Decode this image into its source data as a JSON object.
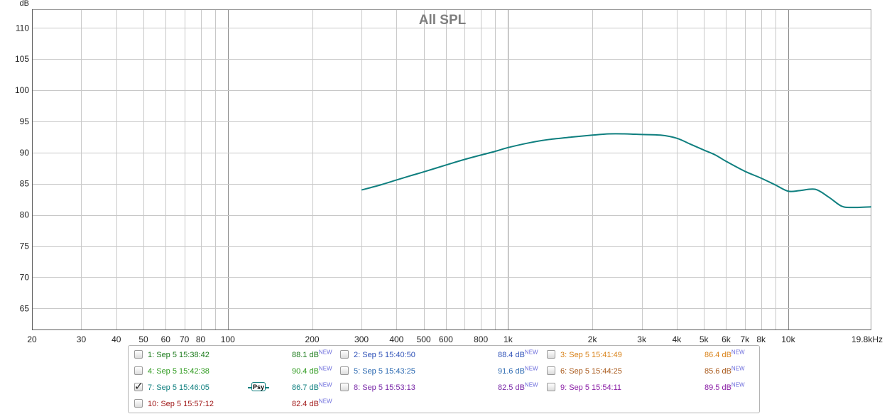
{
  "chart_data": {
    "type": "line",
    "title": "All SPL",
    "ylabel": "dB",
    "xlabel": "",
    "x_scale": "log",
    "xlim": [
      20,
      19800
    ],
    "ylim": [
      61.5,
      113
    ],
    "x_ticks": [
      {
        "value": 20,
        "label": "20"
      },
      {
        "value": 30,
        "label": "30"
      },
      {
        "value": 40,
        "label": "40"
      },
      {
        "value": 50,
        "label": "50"
      },
      {
        "value": 60,
        "label": "60"
      },
      {
        "value": 70,
        "label": "70"
      },
      {
        "value": 80,
        "label": "80"
      },
      {
        "value": 100,
        "label": "100"
      },
      {
        "value": 200,
        "label": "200"
      },
      {
        "value": 300,
        "label": "300"
      },
      {
        "value": 400,
        "label": "400"
      },
      {
        "value": 500,
        "label": "500"
      },
      {
        "value": 600,
        "label": "600"
      },
      {
        "value": 800,
        "label": "800"
      },
      {
        "value": 1000,
        "label": "1k"
      },
      {
        "value": 2000,
        "label": "2k"
      },
      {
        "value": 3000,
        "label": "3k"
      },
      {
        "value": 4000,
        "label": "4k"
      },
      {
        "value": 5000,
        "label": "5k"
      },
      {
        "value": 6000,
        "label": "6k"
      },
      {
        "value": 7000,
        "label": "7k"
      },
      {
        "value": 8000,
        "label": "8k"
      },
      {
        "value": 10000,
        "label": "10k"
      },
      {
        "value": 19800,
        "label": "19.8kHz"
      }
    ],
    "y_ticks": [
      65,
      70,
      75,
      80,
      85,
      90,
      95,
      100,
      105,
      110
    ],
    "grid": true,
    "series": [
      {
        "name": "7: Sep 5 15:46:05",
        "color": "#0f7f7f",
        "points": [
          [
            300,
            84.0
          ],
          [
            350,
            84.8
          ],
          [
            400,
            85.6
          ],
          [
            450,
            86.3
          ],
          [
            500,
            86.9
          ],
          [
            600,
            88.0
          ],
          [
            700,
            88.9
          ],
          [
            800,
            89.6
          ],
          [
            900,
            90.2
          ],
          [
            1000,
            90.8
          ],
          [
            1200,
            91.6
          ],
          [
            1400,
            92.1
          ],
          [
            1700,
            92.5
          ],
          [
            2000,
            92.8
          ],
          [
            2300,
            93.0
          ],
          [
            2600,
            93.0
          ],
          [
            3000,
            92.9
          ],
          [
            3500,
            92.8
          ],
          [
            4000,
            92.3
          ],
          [
            4500,
            91.3
          ],
          [
            5000,
            90.4
          ],
          [
            5500,
            89.6
          ],
          [
            6000,
            88.6
          ],
          [
            7000,
            87.0
          ],
          [
            8000,
            85.9
          ],
          [
            9000,
            84.8
          ],
          [
            10000,
            83.8
          ],
          [
            11000,
            83.9
          ],
          [
            12500,
            84.1
          ],
          [
            14000,
            82.8
          ],
          [
            15500,
            81.4
          ],
          [
            17000,
            81.2
          ],
          [
            19800,
            81.3
          ]
        ]
      }
    ]
  },
  "legend": {
    "entries": [
      {
        "id": 1,
        "label": "1: Sep 5 15:38:42",
        "value": "88.1 dB",
        "tag": "NEW",
        "color": "#1a7a1a",
        "checked": false,
        "psy": false
      },
      {
        "id": 2,
        "label": "2: Sep 5 15:40:50",
        "value": "88.4 dB",
        "tag": "NEW",
        "color": "#2f52b8",
        "checked": false,
        "psy": false
      },
      {
        "id": 3,
        "label": "3: Sep 5 15:41:49",
        "value": "86.4 dB",
        "tag": "NEW",
        "color": "#d98218",
        "checked": false,
        "psy": false
      },
      {
        "id": 4,
        "label": "4: Sep 5 15:42:38",
        "value": "90.4 dB",
        "tag": "NEW",
        "color": "#2e9a1e",
        "checked": false,
        "psy": false
      },
      {
        "id": 5,
        "label": "5: Sep 5 15:43:25",
        "value": "91.6 dB",
        "tag": "NEW",
        "color": "#2a68b0",
        "checked": false,
        "psy": false
      },
      {
        "id": 6,
        "label": "6: Sep 5 15:44:25",
        "value": "85.6 dB",
        "tag": "NEW",
        "color": "#a8581a",
        "checked": false,
        "psy": false
      },
      {
        "id": 7,
        "label": "7: Sep 5 15:46:05",
        "value": "86.7 dB",
        "tag": "NEW",
        "color": "#0f7f7f",
        "checked": true,
        "psy": true,
        "psy_label": "Psy"
      },
      {
        "id": 8,
        "label": "8: Sep 5 15:53:13",
        "value": "82.5 dB",
        "tag": "NEW",
        "color": "#7a2aa8",
        "checked": false,
        "psy": false
      },
      {
        "id": 9,
        "label": "9: Sep 5 15:54:11",
        "value": "89.5 dB",
        "tag": "NEW",
        "color": "#8a1fa6",
        "checked": false,
        "psy": false
      },
      {
        "id": 10,
        "label": "10: Sep 5 15:57:12",
        "value": "82.4 dB",
        "tag": "NEW",
        "color": "#a01818",
        "checked": false,
        "psy": false
      }
    ]
  },
  "check_glyph": "✓"
}
